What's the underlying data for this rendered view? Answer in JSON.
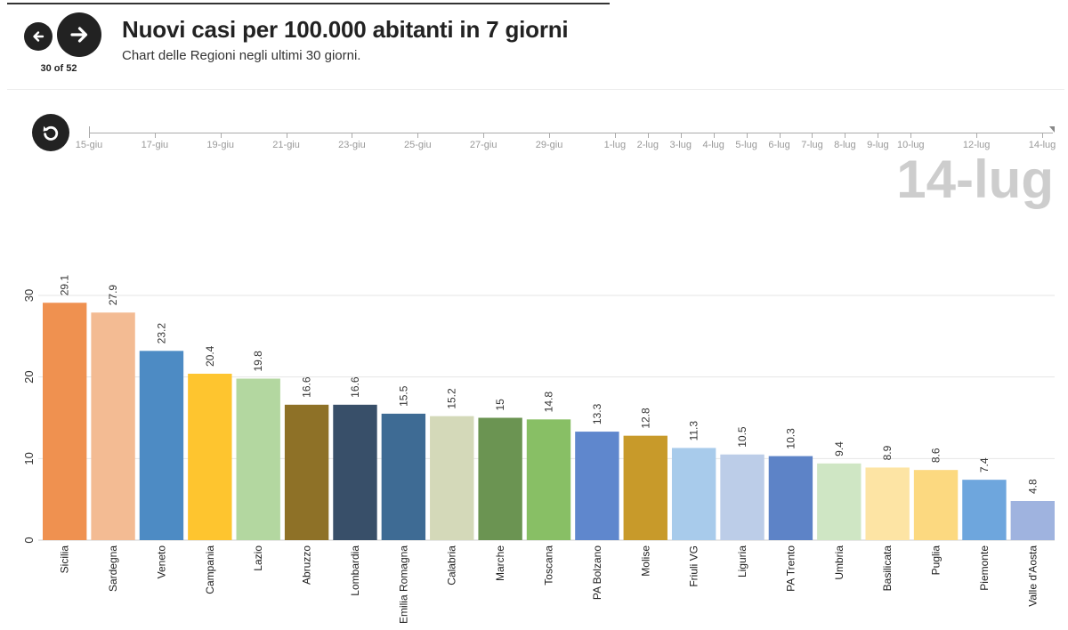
{
  "header": {
    "title": "Nuovi casi per 100.000 abitanti in 7 giorni",
    "subtitle": "Chart delle Regioni negli ultimi 30 giorni.",
    "step_counter": "30 of 52"
  },
  "icons": {
    "prev": "arrow-left-icon",
    "next": "arrow-right-icon",
    "replay": "replay-icon"
  },
  "timeline": {
    "ticks": [
      {
        "label": "15-giu",
        "day": 0
      },
      {
        "label": "17-giu",
        "day": 2
      },
      {
        "label": "19-giu",
        "day": 4
      },
      {
        "label": "21-giu",
        "day": 6
      },
      {
        "label": "23-giu",
        "day": 8
      },
      {
        "label": "25-giu",
        "day": 10
      },
      {
        "label": "27-giu",
        "day": 12
      },
      {
        "label": "29-giu",
        "day": 14
      },
      {
        "label": "1-lug",
        "day": 16
      },
      {
        "label": "2-lug",
        "day": 17
      },
      {
        "label": "3-lug",
        "day": 18
      },
      {
        "label": "4-lug",
        "day": 19
      },
      {
        "label": "5-lug",
        "day": 20
      },
      {
        "label": "6-lug",
        "day": 21
      },
      {
        "label": "7-lug",
        "day": 22
      },
      {
        "label": "8-lug",
        "day": 23
      },
      {
        "label": "9-lug",
        "day": 24
      },
      {
        "label": "10-lug",
        "day": 25
      },
      {
        "label": "12-lug",
        "day": 27
      },
      {
        "label": "14-lug",
        "day": 29
      }
    ],
    "current": "14-lug"
  },
  "chart_data": {
    "type": "bar",
    "title": "Nuovi casi per 100.000 abitanti in 7 giorni",
    "subtitle": "Chart delle Regioni negli ultimi 30 giorni.",
    "xlabel": "",
    "ylabel": "",
    "ylim": [
      0,
      30
    ],
    "yticks": [
      0,
      10,
      20,
      30
    ],
    "grid": true,
    "categories": [
      "Sicilia",
      "Sardegna",
      "Veneto",
      "Campania",
      "Lazio",
      "Abruzzo",
      "Lombardia",
      "Emilia Romagna",
      "Calabria",
      "Marche",
      "Toscana",
      "PA Bolzano",
      "Molise",
      "Friuli VG",
      "Liguria",
      "PA Trento",
      "Umbria",
      "Basilicata",
      "Puglia",
      "Piemonte",
      "Valle d'Aosta"
    ],
    "values": [
      29.1,
      27.9,
      23.2,
      20.4,
      19.8,
      16.6,
      16.6,
      15.5,
      15.2,
      15,
      14.8,
      13.3,
      12.8,
      11.3,
      10.5,
      10.3,
      9.4,
      8.9,
      8.6,
      7.4,
      4.8
    ],
    "value_labels": [
      "29.1",
      "27.9",
      "23.2",
      "20.4",
      "19.8",
      "16.6",
      "16.6",
      "15.5",
      "15.2",
      "15",
      "14.8",
      "13.3",
      "12.8",
      "11.3",
      "10.5",
      "10.3",
      "9.4",
      "8.9",
      "8.6",
      "7.4",
      "4.8"
    ],
    "colors": [
      "#ef9150",
      "#f3bb93",
      "#4d8bc4",
      "#fec52f",
      "#b3d7a0",
      "#8e7127",
      "#384f69",
      "#3e6b94",
      "#d4d9b9",
      "#6b9452",
      "#88bf65",
      "#5f87cd",
      "#c89a2a",
      "#a8cbeb",
      "#bccde8",
      "#5d83c7",
      "#cfe6c4",
      "#fde4a4",
      "#fcd980",
      "#6ea6dd",
      "#9fb3df"
    ]
  }
}
